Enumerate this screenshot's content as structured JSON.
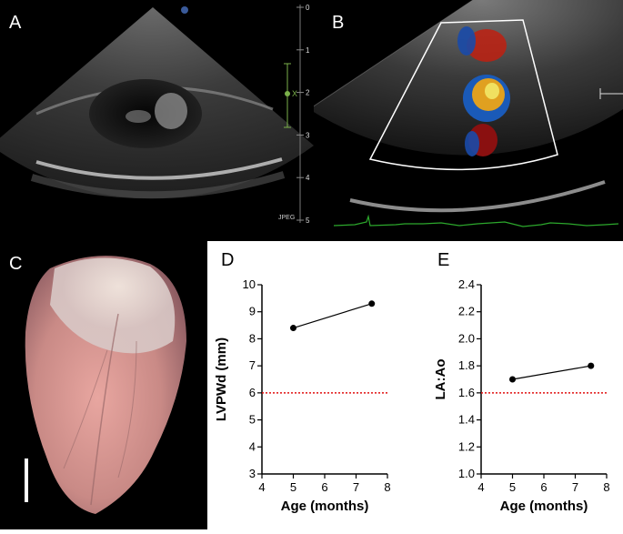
{
  "panels": {
    "a": {
      "letter": "A"
    },
    "b": {
      "letter": "B"
    },
    "c": {
      "letter": "C"
    },
    "d": {
      "letter": "D"
    },
    "e": {
      "letter": "E"
    }
  },
  "echo_a": {
    "depth_scale": [
      "0",
      "1",
      "2",
      "3",
      "4",
      "5"
    ],
    "cursor_label": "X"
  },
  "echo_b": {
    "format_label": "JPEG"
  },
  "chart_data": [
    {
      "panel": "D",
      "type": "line",
      "xlabel": "Age (months)",
      "ylabel": "LVPWd (mm)",
      "xlim": [
        4,
        8
      ],
      "ylim": [
        3,
        10
      ],
      "xticks": [
        4,
        5,
        6,
        7,
        8
      ],
      "yticks": [
        3,
        4,
        5,
        6,
        7,
        8,
        9,
        10
      ],
      "x": [
        5,
        7.5
      ],
      "y": [
        8.4,
        9.3
      ],
      "reference_line": {
        "y": 6,
        "color": "#e01010",
        "style": "dotted"
      },
      "grid": false,
      "marker_color": "#000000"
    },
    {
      "panel": "E",
      "type": "line",
      "xlabel": "Age (months)",
      "ylabel": "LA:Ao",
      "xlim": [
        4,
        8
      ],
      "ylim": [
        1.0,
        2.4
      ],
      "xticks": [
        4,
        5,
        6,
        7,
        8
      ],
      "yticks": [
        "1.0",
        "1.2",
        "1.4",
        "1.6",
        "1.8",
        "2.0",
        "2.2",
        "2.4"
      ],
      "x": [
        5,
        7.5
      ],
      "y": [
        1.7,
        1.8
      ],
      "reference_line": {
        "y": 1.6,
        "color": "#e01010",
        "style": "dotted"
      },
      "grid": false,
      "marker_color": "#000000"
    }
  ]
}
